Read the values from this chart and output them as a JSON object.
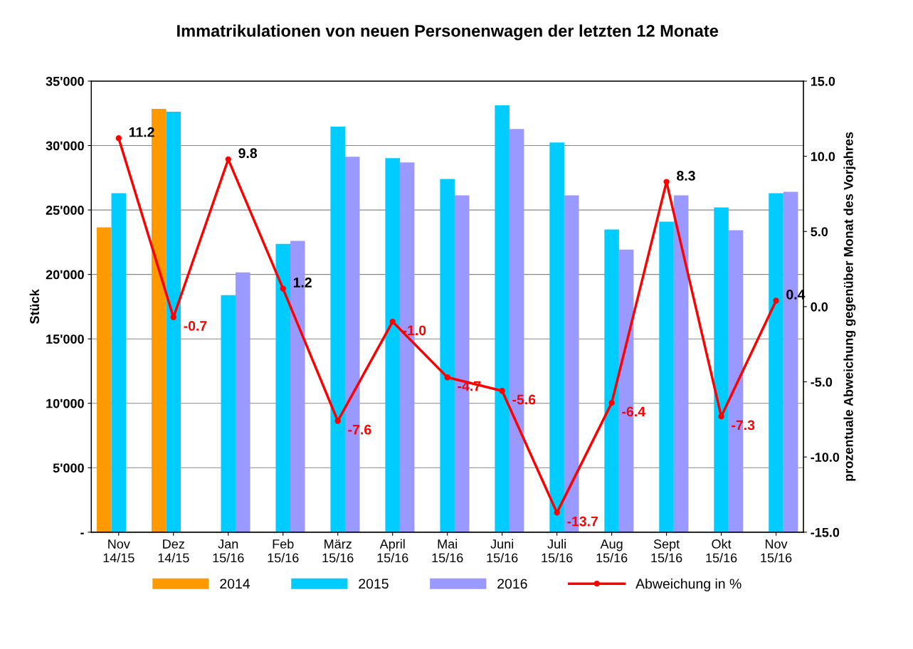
{
  "chart_data": {
    "type": "bar",
    "title": "Immatrikulationen von neuen Personenwagen der letzten 12 Monate",
    "ylabel": "Stück",
    "y2label": "prozentuale Abweichung gegenüber Monat des Vorjahres",
    "categories": [
      "Nov\n14/15",
      "Dez\n14/15",
      "Jan\n15/16",
      "Feb\n15/16",
      "März\n15/16",
      "April\n15/16",
      "Mai\n15/16",
      "Juni\n15/16",
      "Juli\n15/16",
      "Aug\n15/16",
      "Sept\n15/16",
      "Okt\n15/16",
      "Nov\n15/16"
    ],
    "series": [
      {
        "name": "2014",
        "color": "#ff9900",
        "values": [
          23650,
          32840,
          null,
          null,
          null,
          null,
          null,
          null,
          null,
          null,
          null,
          null,
          null
        ]
      },
      {
        "name": "2015",
        "color": "#00ccff",
        "values": [
          26300,
          32620,
          18390,
          22370,
          31460,
          29020,
          27410,
          33120,
          30240,
          23480,
          24090,
          25200,
          26300
        ]
      },
      {
        "name": "2016",
        "color": "#9999ff",
        "values": [
          null,
          null,
          20160,
          22600,
          29130,
          28690,
          26140,
          31290,
          26140,
          21930,
          26140,
          23430,
          26420
        ]
      },
      {
        "name": "Abweichung in %",
        "type": "line",
        "axis": "y2",
        "color": "#ff0000",
        "marker": "circle",
        "values": [
          11.2,
          -0.7,
          9.8,
          1.2,
          -7.6,
          -1.0,
          -4.7,
          -5.6,
          -13.7,
          -6.4,
          8.3,
          -7.3,
          0.4
        ],
        "value_labels": [
          "11.2",
          "-0.7",
          "9.8",
          "1.2",
          "-7.6",
          "-1.0",
          "-4.7",
          "-5.6",
          "-13.7",
          "-6.4",
          "8.3",
          "-7.3",
          "0.4"
        ]
      }
    ],
    "ylim": [
      0,
      35000
    ],
    "yticks": [
      {
        "value": 0,
        "label": "-"
      },
      {
        "value": 5000,
        "label": "5'000"
      },
      {
        "value": 10000,
        "label": "10'000"
      },
      {
        "value": 15000,
        "label": "15'000"
      },
      {
        "value": 20000,
        "label": "20'000"
      },
      {
        "value": 25000,
        "label": "25'000"
      },
      {
        "value": 30000,
        "label": "30'000"
      },
      {
        "value": 35000,
        "label": "35'000"
      }
    ],
    "y2lim": [
      -15,
      15
    ],
    "y2ticks": [
      {
        "value": -15,
        "label": "-15.0"
      },
      {
        "value": -10,
        "label": "-10.0"
      },
      {
        "value": -5,
        "label": "-5.0"
      },
      {
        "value": 0,
        "label": "0.0"
      },
      {
        "value": 5,
        "label": "5.0"
      },
      {
        "value": 10,
        "label": "10.0"
      },
      {
        "value": 15,
        "label": "15.0"
      }
    ],
    "grid": "y",
    "legend": "bottom"
  }
}
